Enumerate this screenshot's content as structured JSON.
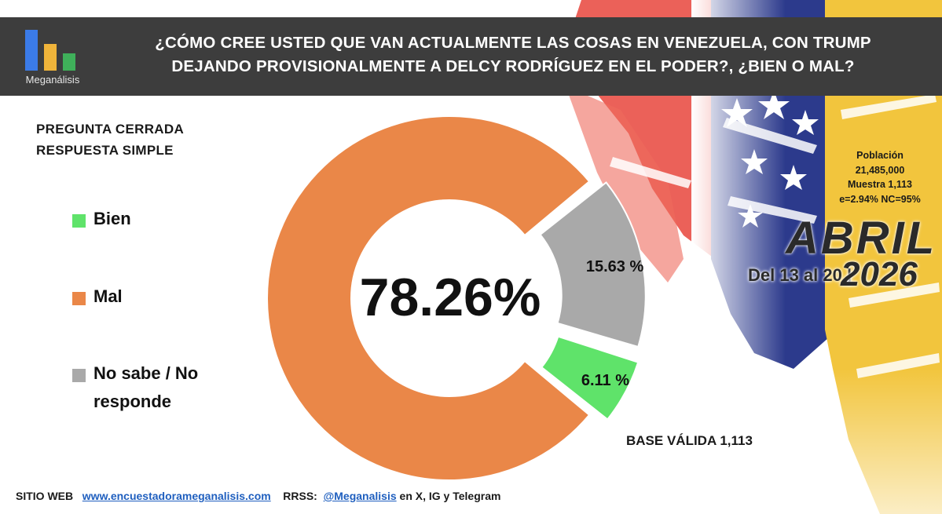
{
  "header": {
    "logo_text": "Meganálisis",
    "title_line1": "¿CÓMO CREE USTED QUE VAN ACTUALMENTE LAS COSAS EN VENEZUELA, CON TRUMP",
    "title_line2": "DEJANDO PROVISIONALMENTE A DELCY RODRÍGUEZ EN EL PODER?, ¿BIEN O MAL?"
  },
  "question_type": {
    "line1": "PREGUNTA  CERRADA",
    "line2": "RESPUESTA SIMPLE"
  },
  "legend": [
    {
      "label": "Bien",
      "color": "#5fe36a"
    },
    {
      "label": "Mal",
      "color": "#ea8748"
    },
    {
      "label": "No sabe / No responde",
      "color": "#a9a9a9"
    }
  ],
  "chart_data": {
    "type": "pie",
    "style": "donut",
    "categories": [
      "Bien",
      "Mal",
      "No sabe / No responde"
    ],
    "values": [
      6.11,
      78.26,
      15.63
    ],
    "labels": [
      "6.11 %",
      "78.26%",
      "15.63 %"
    ],
    "colors": [
      "#5fe36a",
      "#ea8748",
      "#a9a9a9"
    ],
    "legend_position": "left"
  },
  "stats": {
    "line1": "Población",
    "line2": "21,485,000",
    "line3": "Muestra 1,113",
    "line4": "e=2.94%  NC=95%"
  },
  "period": {
    "month": "ABRIL",
    "dates": "Del 13 al 20 |",
    "year": "2026"
  },
  "base": "BASE VÁLIDA 1,113",
  "footer": {
    "site_label": "SITIO WEB",
    "site_url": "www.encuestadorameganalisis.com",
    "rrss_label": "RRSS:",
    "handle": "@Meganalisis",
    "networks": "en X, IG y Telegram"
  },
  "colors": {
    "header_bg": "#3d3d3d",
    "flag_red": "#e8453c",
    "flag_blue": "#2c3a8c",
    "flag_yellow": "#f2c53d"
  }
}
